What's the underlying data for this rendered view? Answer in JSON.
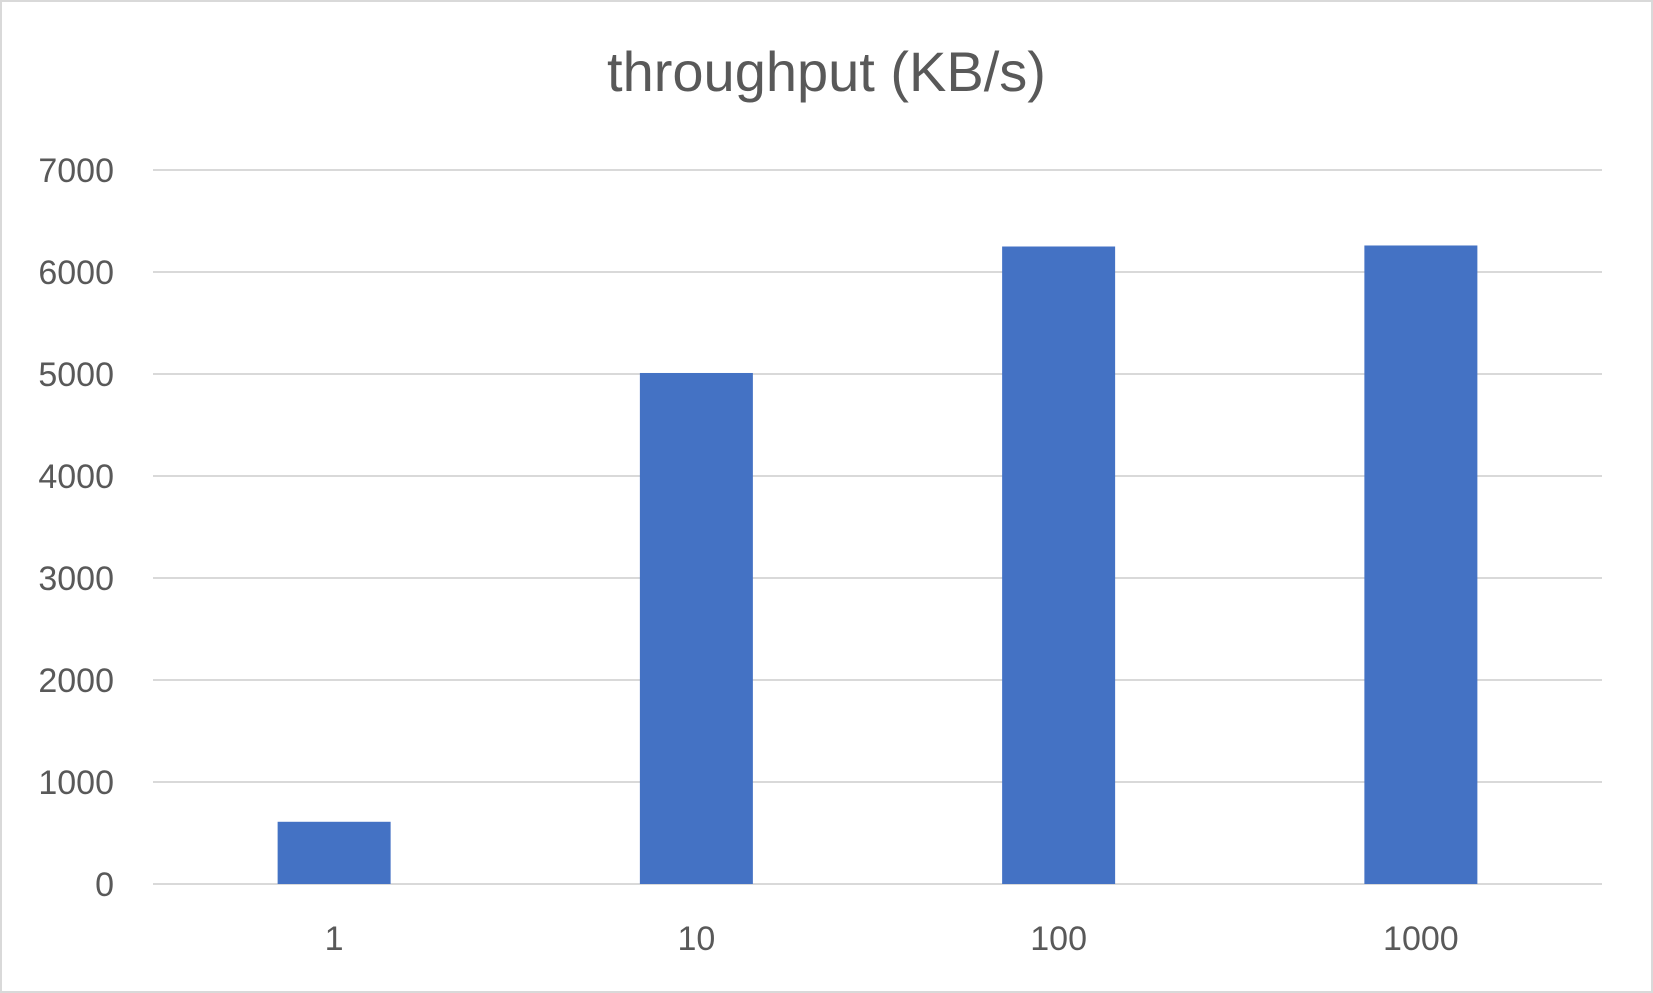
{
  "chart_data": {
    "type": "bar",
    "title": "throughput (KB/s)",
    "xlabel": "",
    "ylabel": "",
    "categories": [
      "1",
      "10",
      "100",
      "1000"
    ],
    "values": [
      610,
      5010,
      6250,
      6260
    ],
    "ylim": [
      0,
      7000
    ],
    "yticks": [
      "0",
      "1000",
      "2000",
      "3000",
      "4000",
      "5000",
      "6000",
      "7000"
    ],
    "grid": true,
    "legend": "none",
    "bar_color": "#4472c4",
    "grid_color": "#d9d9d9",
    "text_color": "#595959"
  }
}
